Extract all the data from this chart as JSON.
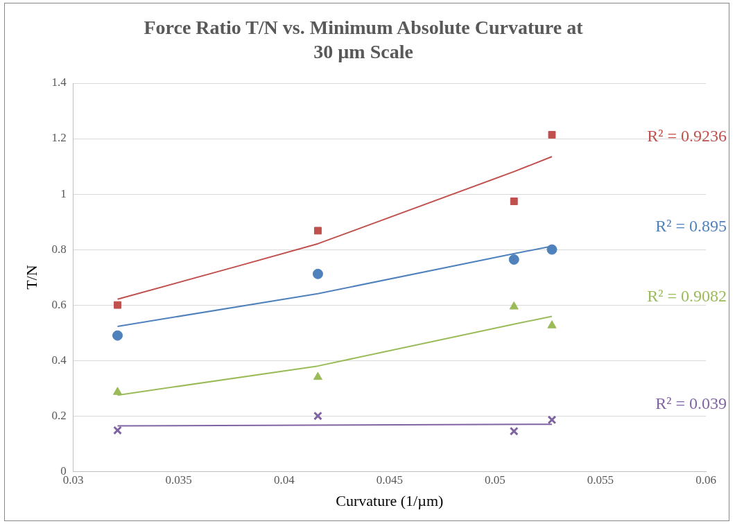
{
  "chart_data": {
    "type": "scatter",
    "title": "Force Ratio T/N vs. Minimum Absolute Curvature at 30 µm Scale",
    "xlabel": "Curvature (1/µm)",
    "ylabel": "T/N",
    "xlim": [
      0.03,
      0.06
    ],
    "xticks": [
      0.03,
      0.035,
      0.04,
      0.045,
      0.05,
      0.055,
      0.06
    ],
    "ylim": [
      0,
      1.4
    ],
    "yticks": [
      0,
      0.2,
      0.4,
      0.6,
      0.8,
      1,
      1.2,
      1.4
    ],
    "grid": "y",
    "legend": false,
    "x": [
      0.0321,
      0.0416,
      0.0509,
      0.0527
    ],
    "series": [
      {
        "color": "#c0504d",
        "marker": "square",
        "values": [
          0.6,
          0.868,
          0.974,
          1.214
        ]
      },
      {
        "color": "#4f81bd",
        "marker": "circle",
        "values": [
          0.49,
          0.712,
          0.764,
          0.8
        ]
      },
      {
        "color": "#9bbb59",
        "marker": "triangle",
        "values": [
          0.286,
          0.34,
          0.594,
          0.526
        ]
      },
      {
        "color": "#8064a2",
        "marker": "cross",
        "values": [
          0.148,
          0.2,
          0.145,
          0.186
        ]
      },
      {
        "type": "line",
        "color": "#c0504d",
        "marker": "none",
        "x": [
          0.0321,
          0.0377,
          0.0416,
          0.0509,
          0.0527
        ],
        "values": [
          0.621,
          0.738,
          0.821,
          1.081,
          1.135
        ]
      },
      {
        "type": "line",
        "color": "#4f81bd",
        "marker": "none",
        "x": [
          0.0321,
          0.0416,
          0.0509,
          0.0527
        ],
        "values": [
          0.523,
          0.641,
          0.785,
          0.812
        ]
      },
      {
        "type": "line",
        "color": "#9bbb59",
        "marker": "none",
        "x": [
          0.0321,
          0.0416,
          0.0509,
          0.0527
        ],
        "values": [
          0.275,
          0.38,
          0.531,
          0.559
        ]
      },
      {
        "type": "line",
        "color": "#8064a2",
        "marker": "none",
        "x": [
          0.0321,
          0.0527
        ],
        "values": [
          0.164,
          0.17
        ]
      }
    ],
    "annotations": [
      "R² = 0.9236",
      "R² = 0.895",
      "R² = 0.9082",
      "R² = 0.039"
    ]
  }
}
